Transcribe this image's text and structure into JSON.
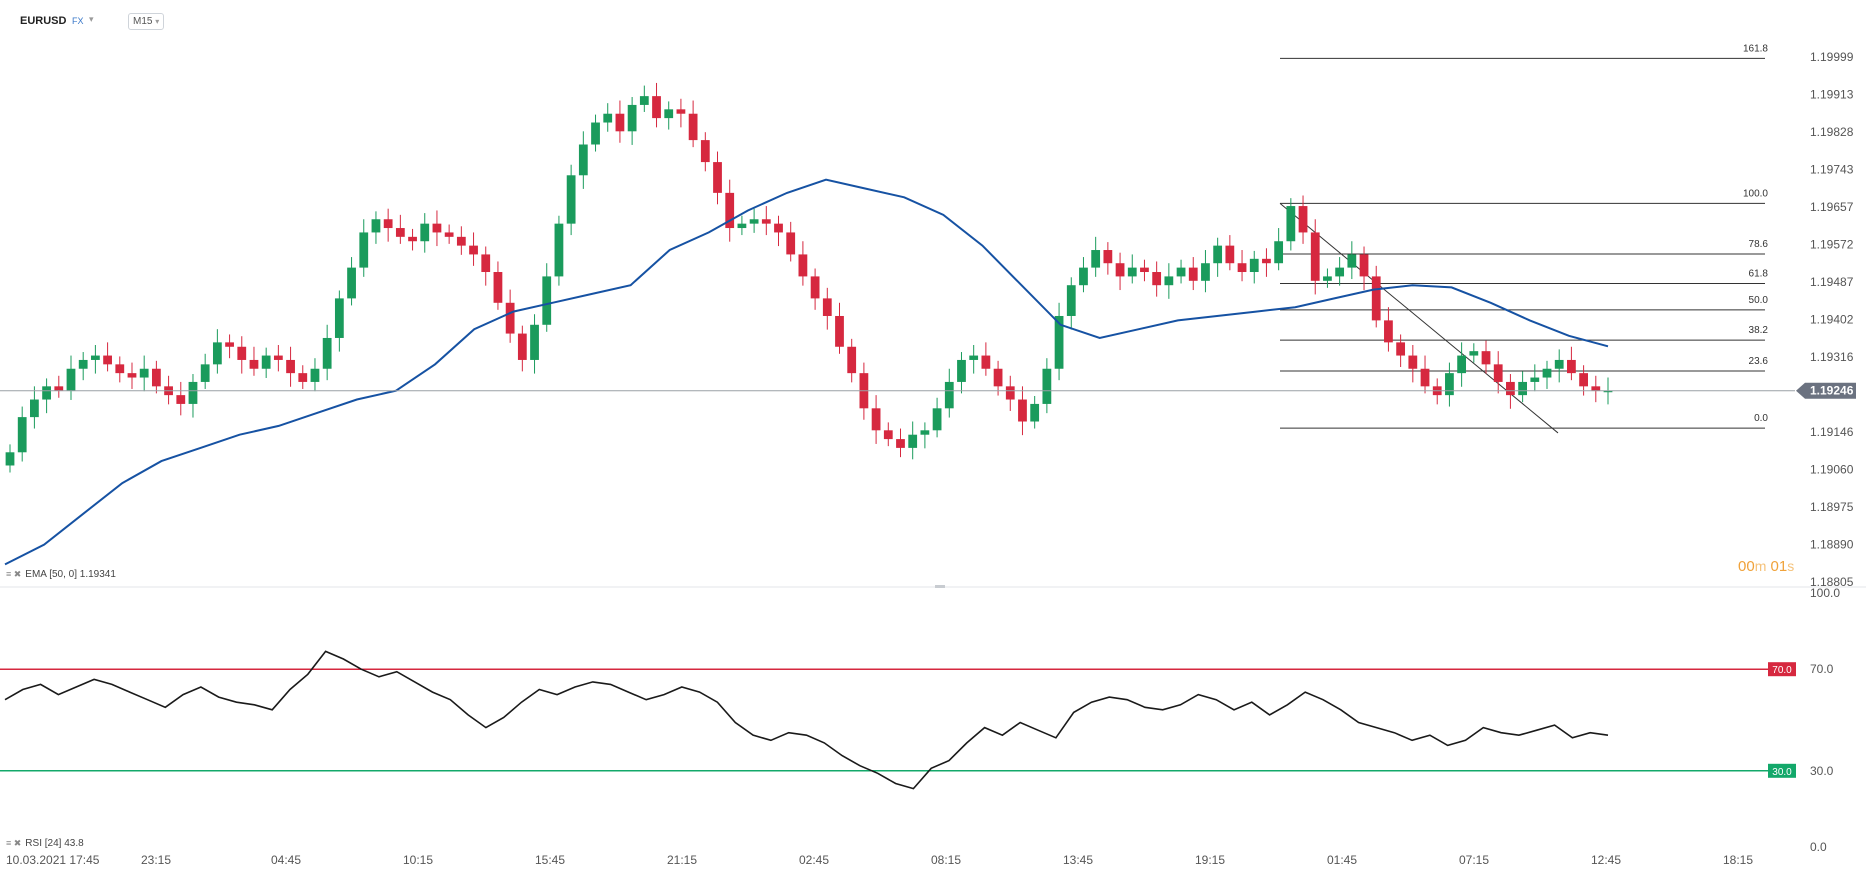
{
  "header": {
    "symbol": "EURUSD",
    "market": "FX",
    "timeframe": "M15"
  },
  "ema_label": {
    "icons": "≡ ✖",
    "text": "EMA [50, 0]  1.19341"
  },
  "rsi_label": {
    "icons": "≡ ✖",
    "text": "RSI [24]  43.8"
  },
  "timer": {
    "minutes": "00",
    "min_unit": "m",
    "seconds": "01",
    "sec_unit": "s"
  },
  "colors": {
    "up": "#1a9b5c",
    "down": "#d6283f",
    "ema": "#1652a3",
    "rsi": "#1a1a1a",
    "overbought": "#d6283f",
    "oversold": "#13a86a",
    "price_line": "#9aa0a6",
    "price_badge": "#6b7280"
  },
  "chart_data": [
    {
      "type": "candlestick",
      "title": "",
      "symbol": "EURUSD",
      "timeframe": "M15",
      "x_tick_labels": [
        "10.03.2021  17:45",
        "23:15",
        "04:45",
        "10:15",
        "15:45",
        "21:15",
        "02:45",
        "08:15",
        "13:45",
        "19:15",
        "01:45",
        "07:15",
        "12:45",
        "18:15"
      ],
      "y_tick_labels": [
        "1.19999",
        "1.19913",
        "1.19828",
        "1.19743",
        "1.19657",
        "1.19572",
        "1.19487",
        "1.19402",
        "1.19316",
        "1.19246",
        "1.19146",
        "1.19060",
        "1.18975",
        "1.18890",
        "1.18805"
      ],
      "ylim": [
        1.18805,
        1.19999
      ],
      "current_price": "1.19246",
      "ema": {
        "name": "EMA [50, 0]",
        "value": 1.19341
      },
      "fibonacci": {
        "levels": [
          {
            "label": "161.8",
            "price": 1.19996
          },
          {
            "label": "100.0",
            "price": 1.19666
          },
          {
            "label": "78.6",
            "price": 1.19551
          },
          {
            "label": "61.8",
            "price": 1.19484
          },
          {
            "label": "50.0",
            "price": 1.19424
          },
          {
            "label": "38.2",
            "price": 1.19355
          },
          {
            "label": "23.6",
            "price": 1.19285
          },
          {
            "label": "0.0",
            "price": 1.19155
          }
        ]
      },
      "close_series": [
        1.191,
        1.1918,
        1.1922,
        1.1925,
        1.1924,
        1.1929,
        1.1931,
        1.1932,
        1.193,
        1.1928,
        1.1927,
        1.1929,
        1.1925,
        1.1923,
        1.1921,
        1.1926,
        1.193,
        1.1935,
        1.1934,
        1.1931,
        1.1929,
        1.1932,
        1.1931,
        1.1928,
        1.1926,
        1.1929,
        1.1936,
        1.1945,
        1.1952,
        1.196,
        1.1963,
        1.1961,
        1.1959,
        1.1958,
        1.1962,
        1.196,
        1.1959,
        1.1957,
        1.1955,
        1.1951,
        1.1944,
        1.1937,
        1.1931,
        1.1939,
        1.195,
        1.1962,
        1.1973,
        1.198,
        1.1985,
        1.1987,
        1.1983,
        1.1989,
        1.1991,
        1.1986,
        1.1988,
        1.1987,
        1.1981,
        1.1976,
        1.1969,
        1.1961,
        1.1962,
        1.1963,
        1.1962,
        1.196,
        1.1955,
        1.195,
        1.1945,
        1.1941,
        1.1934,
        1.1928,
        1.192,
        1.1915,
        1.1913,
        1.1911,
        1.1914,
        1.1915,
        1.192,
        1.1926,
        1.1931,
        1.1932,
        1.1929,
        1.1925,
        1.1922,
        1.1917,
        1.1921,
        1.1929,
        1.1941,
        1.1948,
        1.1952,
        1.1956,
        1.1953,
        1.195,
        1.1952,
        1.1951,
        1.1948,
        1.195,
        1.1952,
        1.1949,
        1.1953,
        1.1957,
        1.1953,
        1.1951,
        1.1954,
        1.1953,
        1.1958,
        1.1966,
        1.196,
        1.1949,
        1.195,
        1.1952,
        1.1955,
        1.195,
        1.194,
        1.1935,
        1.1932,
        1.1929,
        1.1925,
        1.1923,
        1.1928,
        1.1932,
        1.1933,
        1.193,
        1.1926,
        1.1923,
        1.1926,
        1.1927,
        1.1929,
        1.1931,
        1.1928,
        1.1925,
        1.1924,
        1.1924
      ],
      "ema_series": [
        1.18845,
        1.1889,
        1.1896,
        1.1903,
        1.1908,
        1.1911,
        1.1914,
        1.1916,
        1.1919,
        1.1922,
        1.1924,
        1.193,
        1.1938,
        1.1942,
        1.1944,
        1.1946,
        1.1948,
        1.1956,
        1.196,
        1.1965,
        1.1969,
        1.1972,
        1.197,
        1.1968,
        1.1964,
        1.1957,
        1.1948,
        1.1939,
        1.1936,
        1.1938,
        1.194,
        1.1941,
        1.1942,
        1.1943,
        1.1945,
        1.1947,
        1.1948,
        1.19475,
        1.1944,
        1.194,
        1.19365,
        1.19341
      ],
      "rsi": {
        "name": "RSI [24]",
        "value": 43.8,
        "ylim": [
          0,
          100
        ],
        "y_tick_labels": [
          "100.0",
          "70.0",
          "30.0",
          "0.0"
        ],
        "overbought": 70,
        "oversold": 30,
        "series": [
          58,
          62,
          64,
          60,
          63,
          66,
          64,
          61,
          58,
          55,
          60,
          63,
          59,
          57,
          56,
          54,
          62,
          68,
          77,
          74,
          70,
          67,
          69,
          65,
          61,
          58,
          52,
          47,
          51,
          57,
          62,
          60,
          63,
          65,
          64,
          61,
          58,
          60,
          63,
          61,
          57,
          49,
          44,
          42,
          45,
          44,
          41,
          36,
          32,
          29,
          25,
          23,
          31,
          34,
          41,
          47,
          44,
          49,
          46,
          43,
          53,
          57,
          59,
          58,
          55,
          54,
          56,
          60,
          58,
          54,
          57,
          52,
          56,
          61,
          58,
          54,
          49,
          47,
          45,
          42,
          44,
          40,
          42,
          47,
          45,
          44,
          46,
          48,
          43,
          45,
          44
        ]
      }
    }
  ]
}
